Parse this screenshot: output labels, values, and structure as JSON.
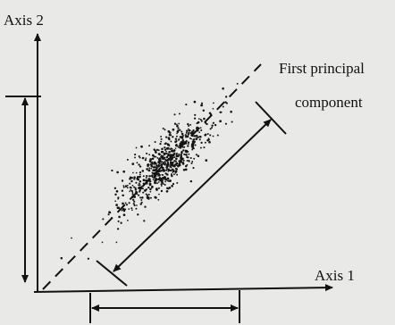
{
  "labels": {
    "axis_2": "Axis 2",
    "axis_1": "Axis 1",
    "pc_line1": "First principal",
    "pc_line2": "component"
  }
}
